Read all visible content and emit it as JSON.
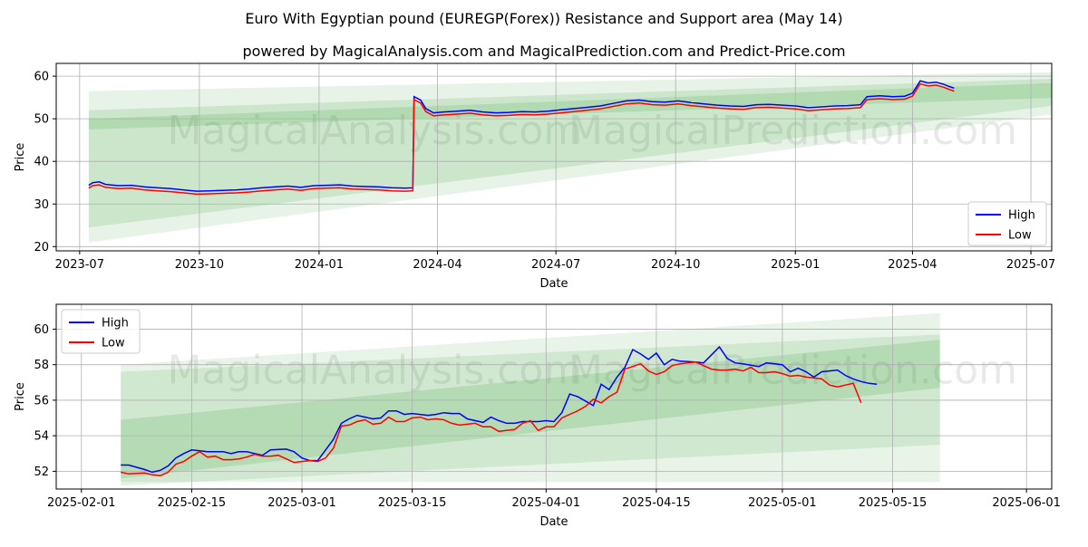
{
  "title": "Euro With Egyptian pound (EUREGP(Forex)) Resistance and Support area (May 14)",
  "subtitle": "powered by MagicalAnalysis.com and MagicalPrediction.com and Predict-Price.com",
  "watermark_left": "MagicalAnalysis.com",
  "watermark_right": "MagicalPrediction.com",
  "colors": {
    "high": "#0000ff",
    "low": "#ff0000",
    "band": "#2e9e2e",
    "grid": "#b0b0b0"
  },
  "chart_data": [
    {
      "type": "line",
      "name": "full-range",
      "xlabel": "Date",
      "ylabel": "Price",
      "x_ticks": [
        {
          "label": "2023-07",
          "t": 0
        },
        {
          "label": "2023-10",
          "t": 92
        },
        {
          "label": "2024-01",
          "t": 184
        },
        {
          "label": "2024-04",
          "t": 275
        },
        {
          "label": "2024-07",
          "t": 366
        },
        {
          "label": "2024-10",
          "t": 458
        },
        {
          "label": "2025-01",
          "t": 550
        },
        {
          "label": "2025-04",
          "t": 640
        },
        {
          "label": "2025-07",
          "t": 731
        }
      ],
      "xlim": [
        -18,
        747
      ],
      "y_ticks": [
        20,
        30,
        40,
        50,
        60
      ],
      "ylim": [
        19,
        63
      ],
      "legend": {
        "position": "bottom-right",
        "entries": [
          "High",
          "Low"
        ]
      },
      "series_points": [
        [
          7,
          34.0
        ],
        [
          10,
          34.6
        ],
        [
          15,
          34.8
        ],
        [
          20,
          34.2
        ],
        [
          30,
          33.9
        ],
        [
          40,
          34.0
        ],
        [
          50,
          33.6
        ],
        [
          60,
          33.4
        ],
        [
          70,
          33.2
        ],
        [
          80,
          32.9
        ],
        [
          90,
          32.6
        ],
        [
          100,
          32.7
        ],
        [
          110,
          32.8
        ],
        [
          120,
          32.9
        ],
        [
          130,
          33.1
        ],
        [
          140,
          33.4
        ],
        [
          150,
          33.6
        ],
        [
          160,
          33.8
        ],
        [
          170,
          33.5
        ],
        [
          180,
          33.9
        ],
        [
          190,
          34.0
        ],
        [
          200,
          34.1
        ],
        [
          210,
          33.8
        ],
        [
          220,
          33.7
        ],
        [
          230,
          33.6
        ],
        [
          240,
          33.4
        ],
        [
          250,
          33.3
        ],
        [
          256,
          33.4
        ],
        [
          257,
          54.8
        ],
        [
          262,
          54.0
        ],
        [
          266,
          52.0
        ],
        [
          272,
          51.0
        ],
        [
          280,
          51.2
        ],
        [
          290,
          51.4
        ],
        [
          300,
          51.6
        ],
        [
          310,
          51.2
        ],
        [
          320,
          51.0
        ],
        [
          330,
          51.1
        ],
        [
          340,
          51.3
        ],
        [
          350,
          51.2
        ],
        [
          360,
          51.4
        ],
        [
          370,
          51.7
        ],
        [
          380,
          52.0
        ],
        [
          390,
          52.3
        ],
        [
          400,
          52.6
        ],
        [
          410,
          53.2
        ],
        [
          420,
          53.8
        ],
        [
          430,
          54.0
        ],
        [
          440,
          53.6
        ],
        [
          450,
          53.5
        ],
        [
          460,
          53.8
        ],
        [
          470,
          53.4
        ],
        [
          480,
          53.1
        ],
        [
          490,
          52.8
        ],
        [
          500,
          52.6
        ],
        [
          510,
          52.5
        ],
        [
          520,
          52.9
        ],
        [
          530,
          53.0
        ],
        [
          540,
          52.8
        ],
        [
          550,
          52.6
        ],
        [
          560,
          52.2
        ],
        [
          570,
          52.4
        ],
        [
          580,
          52.6
        ],
        [
          590,
          52.7
        ],
        [
          600,
          52.9
        ],
        [
          605,
          54.8
        ],
        [
          615,
          55.0
        ],
        [
          625,
          54.8
        ],
        [
          634,
          54.9
        ],
        [
          640,
          55.6
        ],
        [
          646,
          58.5
        ],
        [
          652,
          58.0
        ],
        [
          658,
          58.2
        ],
        [
          664,
          57.7
        ],
        [
          668,
          57.2
        ],
        [
          672,
          56.8
        ]
      ],
      "high_offset": 0.4,
      "low_offset": -0.3,
      "bands": [
        {
          "x": [
            7,
            758
          ],
          "upper": [
            56.5,
            61.0
          ],
          "lower": [
            21.0,
            51.5
          ],
          "alpha": 0.12
        },
        {
          "x": [
            7,
            758
          ],
          "upper": [
            52.0,
            59.5
          ],
          "lower": [
            24.5,
            53.5
          ],
          "alpha": 0.14
        },
        {
          "x": [
            7,
            758
          ],
          "upper": [
            50.0,
            58.5
          ],
          "lower": [
            47.5,
            55.0
          ],
          "alpha": 0.16
        }
      ]
    },
    {
      "type": "line",
      "name": "recent-zoom",
      "xlabel": "Date",
      "ylabel": "Price",
      "x_ticks": [
        {
          "label": "2025-02-01",
          "t": 0
        },
        {
          "label": "2025-02-15",
          "t": 14
        },
        {
          "label": "2025-03-01",
          "t": 28
        },
        {
          "label": "2025-03-15",
          "t": 42
        },
        {
          "label": "2025-04-01",
          "t": 59
        },
        {
          "label": "2025-04-15",
          "t": 73
        },
        {
          "label": "2025-05-01",
          "t": 89
        },
        {
          "label": "2025-05-15",
          "t": 103
        },
        {
          "label": "2025-06-01",
          "t": 120
        }
      ],
      "xlim": [
        -3.2,
        123.2
      ],
      "y_ticks": [
        52,
        54,
        56,
        58,
        60
      ],
      "ylim": [
        51.0,
        61.4
      ],
      "legend": {
        "position": "top-left",
        "entries": [
          "High",
          "Low"
        ]
      },
      "high": [
        [
          5,
          52.35
        ],
        [
          6,
          52.35
        ],
        [
          8,
          52.1
        ],
        [
          9,
          51.95
        ],
        [
          10,
          52.05
        ],
        [
          11,
          52.3
        ],
        [
          12,
          52.75
        ],
        [
          13,
          53.0
        ],
        [
          14,
          53.2
        ],
        [
          16,
          53.1
        ],
        [
          18,
          53.1
        ],
        [
          19,
          53.0
        ],
        [
          20,
          53.1
        ],
        [
          21,
          53.1
        ],
        [
          22,
          53.0
        ],
        [
          23,
          52.9
        ],
        [
          24,
          53.2
        ],
        [
          26,
          53.25
        ],
        [
          27,
          53.1
        ],
        [
          28,
          52.75
        ],
        [
          29,
          52.6
        ],
        [
          30,
          52.6
        ],
        [
          32,
          53.8
        ],
        [
          33,
          54.7
        ],
        [
          34,
          54.95
        ],
        [
          35,
          55.15
        ],
        [
          37,
          54.95
        ],
        [
          38,
          55.0
        ],
        [
          39,
          55.4
        ],
        [
          40,
          55.4
        ],
        [
          41,
          55.2
        ],
        [
          42,
          55.25
        ],
        [
          43,
          55.2
        ],
        [
          44,
          55.15
        ],
        [
          45,
          55.2
        ],
        [
          46,
          55.3
        ],
        [
          47,
          55.25
        ],
        [
          48,
          55.25
        ],
        [
          49,
          54.95
        ],
        [
          51,
          54.75
        ],
        [
          52,
          55.05
        ],
        [
          53,
          54.85
        ],
        [
          54,
          54.7
        ],
        [
          55,
          54.7
        ],
        [
          56,
          54.8
        ],
        [
          58,
          54.8
        ],
        [
          59,
          54.85
        ],
        [
          60,
          54.8
        ],
        [
          61,
          55.3
        ],
        [
          62,
          56.35
        ],
        [
          63,
          56.2
        ],
        [
          65,
          55.7
        ],
        [
          66,
          56.9
        ],
        [
          67,
          56.6
        ],
        [
          68,
          57.3
        ],
        [
          69,
          57.85
        ],
        [
          70,
          58.85
        ],
        [
          71,
          58.6
        ],
        [
          72,
          58.3
        ],
        [
          73,
          58.65
        ],
        [
          74,
          58.0
        ],
        [
          75,
          58.3
        ],
        [
          76,
          58.2
        ],
        [
          78,
          58.15
        ],
        [
          79,
          58.1
        ],
        [
          81,
          59.0
        ],
        [
          82,
          58.35
        ],
        [
          83,
          58.1
        ],
        [
          84,
          58.05
        ],
        [
          86,
          57.9
        ],
        [
          87,
          58.1
        ],
        [
          89,
          58.0
        ],
        [
          90,
          57.6
        ],
        [
          91,
          57.8
        ],
        [
          92,
          57.6
        ],
        [
          93,
          57.3
        ],
        [
          94,
          57.6
        ],
        [
          95,
          57.65
        ],
        [
          96,
          57.7
        ],
        [
          97,
          57.4
        ],
        [
          98,
          57.2
        ],
        [
          99,
          57.05
        ],
        [
          100,
          56.95
        ],
        [
          101,
          56.9
        ]
      ],
      "low": [
        [
          5,
          51.95
        ],
        [
          6,
          51.85
        ],
        [
          8,
          51.9
        ],
        [
          9,
          51.8
        ],
        [
          10,
          51.75
        ],
        [
          11,
          51.95
        ],
        [
          12,
          52.4
        ],
        [
          13,
          52.55
        ],
        [
          14,
          52.85
        ],
        [
          15,
          53.1
        ],
        [
          16,
          52.8
        ],
        [
          17,
          52.85
        ],
        [
          18,
          52.65
        ],
        [
          19,
          52.65
        ],
        [
          20,
          52.7
        ],
        [
          21,
          52.8
        ],
        [
          22,
          52.95
        ],
        [
          23,
          52.85
        ],
        [
          24,
          52.85
        ],
        [
          25,
          52.9
        ],
        [
          26,
          52.7
        ],
        [
          27,
          52.5
        ],
        [
          28,
          52.55
        ],
        [
          29,
          52.6
        ],
        [
          30,
          52.55
        ],
        [
          31,
          52.75
        ],
        [
          32,
          53.3
        ],
        [
          33,
          54.55
        ],
        [
          34,
          54.6
        ],
        [
          35,
          54.8
        ],
        [
          36,
          54.9
        ],
        [
          37,
          54.65
        ],
        [
          38,
          54.7
        ],
        [
          39,
          55.05
        ],
        [
          40,
          54.8
        ],
        [
          41,
          54.8
        ],
        [
          42,
          55.0
        ],
        [
          43,
          55.05
        ],
        [
          44,
          54.9
        ],
        [
          45,
          54.95
        ],
        [
          46,
          54.9
        ],
        [
          47,
          54.7
        ],
        [
          48,
          54.6
        ],
        [
          49,
          54.65
        ],
        [
          50,
          54.7
        ],
        [
          51,
          54.5
        ],
        [
          52,
          54.5
        ],
        [
          53,
          54.25
        ],
        [
          54,
          54.3
        ],
        [
          55,
          54.35
        ],
        [
          56,
          54.7
        ],
        [
          57,
          54.85
        ],
        [
          58,
          54.3
        ],
        [
          59,
          54.5
        ],
        [
          60,
          54.5
        ],
        [
          61,
          55.0
        ],
        [
          63,
          55.4
        ],
        [
          64,
          55.65
        ],
        [
          65,
          56.05
        ],
        [
          66,
          55.85
        ],
        [
          67,
          56.2
        ],
        [
          68,
          56.45
        ],
        [
          69,
          57.75
        ],
        [
          70,
          57.9
        ],
        [
          71,
          58.05
        ],
        [
          72,
          57.65
        ],
        [
          73,
          57.45
        ],
        [
          74,
          57.6
        ],
        [
          75,
          57.95
        ],
        [
          76,
          58.05
        ],
        [
          77,
          58.1
        ],
        [
          78,
          58.15
        ],
        [
          79,
          57.95
        ],
        [
          80,
          57.75
        ],
        [
          81,
          57.7
        ],
        [
          82,
          57.7
        ],
        [
          83,
          57.75
        ],
        [
          84,
          57.65
        ],
        [
          85,
          57.85
        ],
        [
          86,
          57.55
        ],
        [
          87,
          57.55
        ],
        [
          88,
          57.6
        ],
        [
          89,
          57.5
        ],
        [
          90,
          57.35
        ],
        [
          91,
          57.4
        ],
        [
          92,
          57.3
        ],
        [
          93,
          57.25
        ],
        [
          94,
          57.2
        ],
        [
          95,
          56.85
        ],
        [
          96,
          56.75
        ],
        [
          97,
          56.85
        ],
        [
          98,
          56.95
        ],
        [
          99,
          55.85
        ]
      ],
      "bands": [
        {
          "x": [
            5,
            109
          ],
          "upper": [
            58.0,
            60.9
          ],
          "lower": [
            51.4,
            51.4
          ],
          "alpha": 0.11
        },
        {
          "x": [
            5,
            109
          ],
          "upper": [
            57.6,
            59.7
          ],
          "lower": [
            51.2,
            53.5
          ],
          "alpha": 0.13
        },
        {
          "x": [
            5,
            109
          ],
          "upper": [
            54.9,
            59.4
          ],
          "lower": [
            51.6,
            56.7
          ],
          "alpha": 0.16
        }
      ]
    }
  ]
}
